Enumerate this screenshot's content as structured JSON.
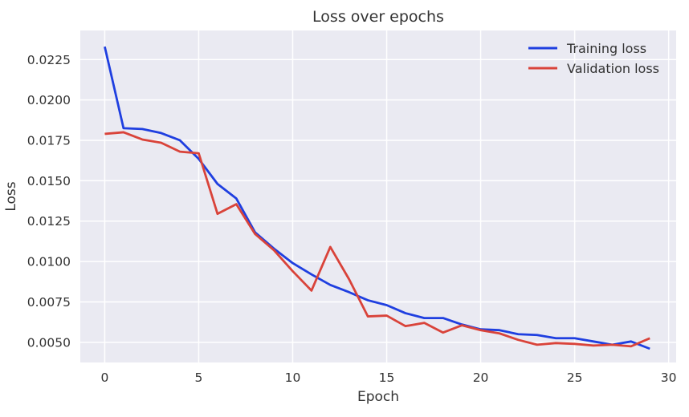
{
  "chart_data": {
    "type": "line",
    "title": "Loss over epochs",
    "xlabel": "Epoch",
    "ylabel": "Loss",
    "xlim": [
      -1.3,
      30.4
    ],
    "ylim": [
      0.00375,
      0.0243
    ],
    "x_ticks": [
      0,
      5,
      10,
      15,
      20,
      25,
      30
    ],
    "y_ticks": [
      0.005,
      0.0075,
      0.01,
      0.0125,
      0.015,
      0.0175,
      0.02,
      0.0225
    ],
    "x_tick_labels": [
      "0",
      "5",
      "10",
      "15",
      "20",
      "25",
      "30"
    ],
    "y_tick_labels": [
      "0.0050",
      "0.0075",
      "0.0100",
      "0.0125",
      "0.0150",
      "0.0175",
      "0.0200",
      "0.0225"
    ],
    "grid": true,
    "legend_position": "top-right",
    "x": [
      0,
      1,
      2,
      3,
      4,
      5,
      6,
      7,
      8,
      9,
      10,
      11,
      12,
      13,
      14,
      15,
      16,
      17,
      18,
      19,
      20,
      21,
      22,
      23,
      24,
      25,
      26,
      27,
      28,
      29
    ],
    "series": [
      {
        "name": "Training loss",
        "color": "#1f3fe0",
        "values": [
          0.0233,
          0.01825,
          0.0182,
          0.01795,
          0.0175,
          0.01635,
          0.0148,
          0.0139,
          0.0118,
          0.0108,
          0.0099,
          0.0092,
          0.00855,
          0.0081,
          0.0076,
          0.0073,
          0.0068,
          0.0065,
          0.0065,
          0.0061,
          0.0058,
          0.00575,
          0.0055,
          0.00545,
          0.00525,
          0.00525,
          0.00505,
          0.00485,
          0.00505,
          0.0046
        ]
      },
      {
        "name": "Validation loss",
        "color": "#d9433a",
        "values": [
          0.0179,
          0.018,
          0.01755,
          0.01735,
          0.0168,
          0.0167,
          0.01295,
          0.01355,
          0.0117,
          0.0107,
          0.0094,
          0.0082,
          0.0109,
          0.0089,
          0.0066,
          0.00665,
          0.006,
          0.0062,
          0.0056,
          0.00605,
          0.00575,
          0.00555,
          0.00515,
          0.00485,
          0.00495,
          0.0049,
          0.0048,
          0.00485,
          0.00475,
          0.00525
        ]
      }
    ]
  }
}
